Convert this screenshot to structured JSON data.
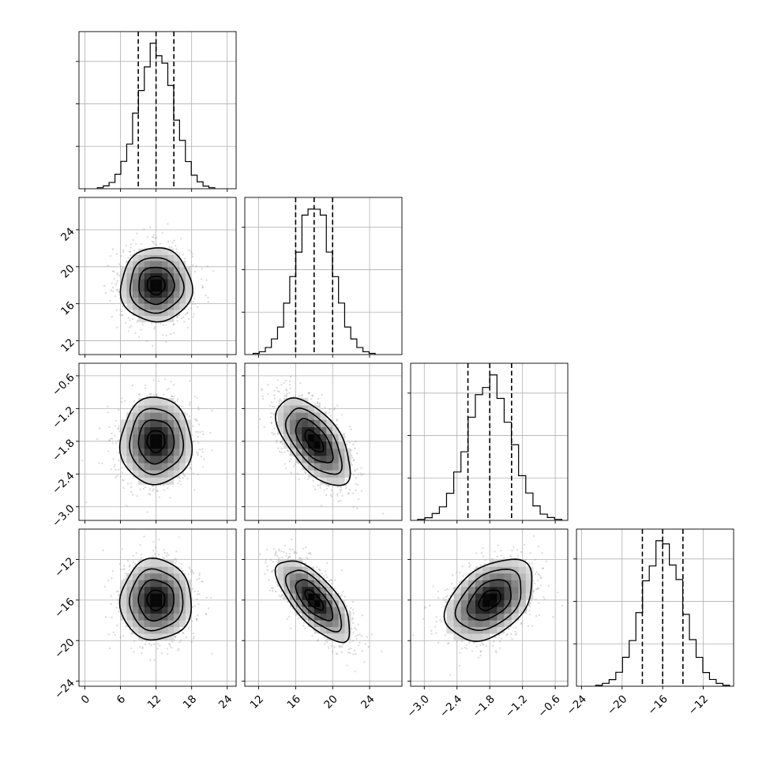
{
  "chart_data": {
    "type": "corner",
    "grid": true,
    "colors": {
      "line": "#000000",
      "points": "#8c8c8c",
      "density": "#000000",
      "grid": "#b0b0b0"
    },
    "parameters": [
      {
        "axis_range": [
          -1,
          25.5
        ],
        "ticks": [
          0,
          6,
          12,
          18,
          24
        ],
        "tick_labels": [
          "0",
          "6",
          "12",
          "18",
          "24"
        ],
        "mean": 12.0,
        "sd": 3.0,
        "quantiles": [
          9.0,
          12.0,
          15.0
        ]
      },
      {
        "axis_range": [
          10.5,
          27.5
        ],
        "ticks": [
          12,
          16,
          20,
          24
        ],
        "tick_labels": [
          "12",
          "16",
          "20",
          "24"
        ],
        "mean": 18.0,
        "sd": 2.0,
        "quantiles": [
          16.0,
          18.0,
          20.0
        ]
      },
      {
        "axis_range": [
          -3.25,
          -0.37
        ],
        "ticks": [
          -3.0,
          -2.4,
          -1.8,
          -1.2,
          -0.6
        ],
        "tick_labels": [
          "−3.0",
          "−2.4",
          "−1.8",
          "−1.2",
          "−0.6"
        ],
        "mean": -1.8,
        "sd": 0.4,
        "quantiles": [
          -2.2,
          -1.8,
          -1.4
        ]
      },
      {
        "axis_range": [
          -24.5,
          -9.0
        ],
        "ticks": [
          -24,
          -20,
          -16,
          -12
        ],
        "tick_labels": [
          "−24",
          "−20",
          "−16",
          "−12"
        ],
        "mean": -16.0,
        "sd": 2.0,
        "quantiles": [
          -18.0,
          -16.0,
          -14.0
        ]
      }
    ],
    "correlations": [
      {
        "x": 0,
        "y": 1,
        "rho": 0.0
      },
      {
        "x": 0,
        "y": 2,
        "rho": 0.0
      },
      {
        "x": 1,
        "y": 2,
        "rho": -0.6
      },
      {
        "x": 0,
        "y": 3,
        "rho": 0.0
      },
      {
        "x": 1,
        "y": 3,
        "rho": -0.7
      },
      {
        "x": 2,
        "y": 3,
        "rho": 0.4
      }
    ],
    "histogram_bins": 20,
    "contour_levels": [
      0.118,
      0.393,
      0.675,
      0.865
    ]
  }
}
